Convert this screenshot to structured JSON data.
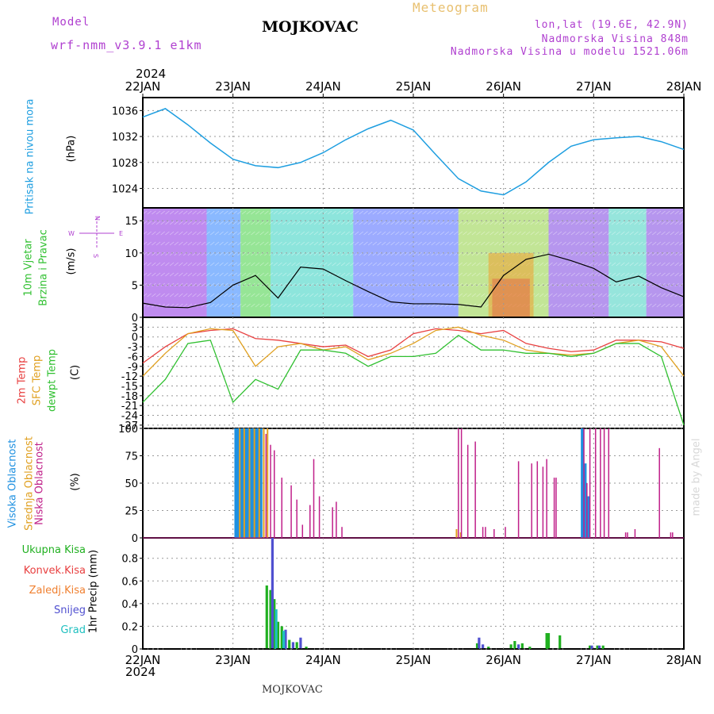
{
  "header": {
    "model_label": "Model",
    "model_name": "wrf-nmm_v3.9.1 e1km",
    "station": "MOJKOVAC",
    "title": "Meteogram",
    "coords": "lon,lat (19.6E, 42.9N)",
    "elevation": "Nadmorska Visina 848m",
    "model_elevation": "Nadmorska Visina u modelu 1521.06m",
    "year_top": "2024",
    "year_bottom": "2024",
    "footer_station": "MOJKOVAC",
    "watermark": "made by Angel"
  },
  "colors": {
    "pressure": "#1e9ee0",
    "temp_2m": "#e84040",
    "temp_sfc": "#e0a020",
    "dewpoint": "#30c030",
    "cloud_high": "#1e90e0",
    "cloud_mid": "#e0a020",
    "cloud_low": "#c0208a",
    "rain_total": "#20b020",
    "rain_conv": "#e84040",
    "rain_frozen": "#f08030",
    "snow": "#5050d0",
    "graupel": "#20c0c0",
    "grid": "#999999"
  },
  "chart_data": [
    {
      "type": "line",
      "panel": "pressure",
      "title": "Pritisak na nivou mora",
      "ylabel": "(hPa)",
      "ylim": [
        1021,
        1038
      ],
      "yticks": [
        1024,
        1028,
        1032,
        1036
      ],
      "x_ticks": [
        "22JAN",
        "23JAN",
        "24JAN",
        "25JAN",
        "26JAN",
        "27JAN",
        "28JAN"
      ],
      "x_hours": [
        0,
        6,
        12,
        18,
        24,
        30,
        36,
        42,
        48,
        54,
        60,
        66,
        72,
        78,
        84,
        90,
        96,
        102,
        108,
        114,
        120,
        126,
        132,
        138,
        144
      ],
      "series": [
        {
          "name": "Pritisak na nivou mora",
          "values": [
            1035.0,
            1036.3,
            1033.8,
            1031.0,
            1028.5,
            1027.5,
            1027.2,
            1028.0,
            1029.5,
            1031.5,
            1033.2,
            1034.5,
            1033.0,
            1029.2,
            1025.5,
            1023.6,
            1023.0,
            1025.0,
            1028.0,
            1030.5,
            1031.5,
            1031.8,
            1032.0,
            1031.2,
            1030.0
          ]
        }
      ]
    },
    {
      "type": "line",
      "panel": "wind",
      "title": "10m Vjetar Brzina i Pravac",
      "ylabel": "(m/s)",
      "ylim": [
        0,
        17
      ],
      "yticks": [
        0,
        5,
        10,
        15
      ],
      "compass": {
        "n": "N",
        "s": "S",
        "e": "E",
        "w": "W"
      },
      "x_hours": [
        0,
        6,
        12,
        18,
        24,
        30,
        36,
        42,
        48,
        54,
        60,
        66,
        72,
        78,
        84,
        90,
        96,
        102,
        108,
        114,
        120,
        126,
        132,
        138,
        144
      ],
      "series": [
        {
          "name": "10m Vjetar",
          "values": [
            2.2,
            1.6,
            1.5,
            2.3,
            5.0,
            6.5,
            3.0,
            7.8,
            7.5,
            5.7,
            4.0,
            2.4,
            2.1,
            2.1,
            2.0,
            1.6,
            6.5,
            9.0,
            9.8,
            8.8,
            7.6,
            5.5,
            6.4,
            4.6,
            3.2
          ]
        }
      ]
    },
    {
      "type": "line",
      "panel": "temperature",
      "title": "2m Temp, SFC Temp, dewpt Temp",
      "ylabel": "(C)",
      "ylim": [
        -28,
        6
      ],
      "yticks": [
        3,
        0,
        -3,
        -6,
        -9,
        -12,
        -15,
        -18,
        -21,
        -24,
        -27
      ],
      "x_hours": [
        0,
        6,
        12,
        18,
        24,
        30,
        36,
        42,
        48,
        54,
        60,
        66,
        72,
        78,
        84,
        90,
        96,
        102,
        108,
        114,
        120,
        126,
        132,
        138,
        144
      ],
      "series": [
        {
          "name": "2m Temp",
          "values": [
            -8.0,
            -3.0,
            1.0,
            2.0,
            2.5,
            -0.5,
            -1.0,
            -2.0,
            -3.0,
            -2.5,
            -6.0,
            -4.0,
            1.0,
            2.5,
            2.0,
            1.0,
            2.0,
            -2.0,
            -3.5,
            -4.5,
            -4.0,
            -1.0,
            -1.0,
            -1.5,
            -3.5
          ]
        },
        {
          "name": "SFC Temp",
          "values": [
            -12.0,
            -5.0,
            1.0,
            2.5,
            2.0,
            -9.0,
            -3.0,
            -2.0,
            -4.0,
            -3.0,
            -7.0,
            -5.0,
            -2.0,
            2.0,
            3.0,
            0.5,
            -1.0,
            -4.0,
            -5.0,
            -5.5,
            -5.0,
            -2.0,
            -1.0,
            -3.0,
            -12.0
          ]
        },
        {
          "name": "dewpt Temp",
          "values": [
            -20.0,
            -13.0,
            -2.0,
            -1.0,
            -20.0,
            -13.0,
            -16.0,
            -4.0,
            -4.0,
            -5.0,
            -9.0,
            -6.0,
            -6.0,
            -5.0,
            0.5,
            -4.0,
            -4.0,
            -5.0,
            -5.0,
            -6.0,
            -5.0,
            -2.0,
            -2.0,
            -6.0,
            -27.0
          ]
        }
      ]
    },
    {
      "type": "bar",
      "panel": "cloud",
      "title": "Visoka Oblacnost, Srednja Oblacnost, Niska Oblacnost",
      "ylabel": "(%)",
      "ylim": [
        0,
        100
      ],
      "yticks": [
        0,
        25,
        50,
        75,
        100
      ],
      "series": [
        {
          "name": "Visoka Oblacnost",
          "x": [
            24.8,
            25.5,
            26.2,
            26.8,
            27.5,
            28.1,
            28.8,
            29.4,
            30.1,
            30.8,
            31.4,
            117.0,
            117.7,
            118.6
          ],
          "values": [
            100,
            100,
            100,
            100,
            100,
            100,
            100,
            100,
            100,
            100,
            100,
            100,
            68,
            38
          ]
        },
        {
          "name": "Srednja Oblacnost",
          "x": [
            25.8,
            27.0,
            28.4,
            29.7,
            31.0,
            32.2,
            33.2,
            83.5,
            84.6
          ],
          "values": [
            100,
            100,
            100,
            100,
            100,
            100,
            100,
            8,
            5
          ]
        },
        {
          "name": "Niska Oblacnost",
          "x": [
            32.8,
            34.0,
            35.0,
            37.0,
            39.5,
            41.0,
            42.5,
            44.5,
            45.5,
            47.0,
            50.5,
            51.5,
            53.0,
            84.0,
            84.8,
            86.5,
            88.5,
            90.5,
            91.2,
            93.5,
            96.5,
            100.0,
            103.5,
            105.0,
            106.5,
            107.5,
            109.5,
            110.0,
            117.4,
            118.2,
            119.0,
            120.5,
            121.8,
            122.8,
            124.0,
            128.5,
            129.0,
            131.0,
            137.5,
            140.5,
            141.0
          ],
          "values": [
            95,
            85,
            80,
            55,
            48,
            35,
            12,
            30,
            72,
            38,
            28,
            33,
            10,
            100,
            100,
            85,
            88,
            10,
            10,
            8,
            10,
            70,
            68,
            70,
            65,
            72,
            55,
            55,
            100,
            50,
            100,
            100,
            100,
            100,
            100,
            5,
            5,
            8,
            82,
            5,
            5
          ]
        }
      ]
    },
    {
      "type": "bar",
      "panel": "precipitation",
      "title": "1hr Precip",
      "ylabel": "1hr Precip (mm)",
      "ylim": [
        0,
        0.98
      ],
      "yticks": [
        0,
        0.2,
        0.4,
        0.6,
        0.8
      ],
      "legend": [
        "Ukupna Kisa",
        "Konvek.Kisa",
        "Zaledj.Kisa",
        "Snijeg",
        "Grad"
      ],
      "series": [
        {
          "name": "Ukupna Kisa",
          "x": [
            33.0,
            34.0,
            35.0,
            36.0,
            37.0,
            39.0,
            41.0,
            43.5,
            89.0,
            92.0,
            98.0,
            99.0,
            101.0,
            103.0,
            107.5,
            108.0,
            111.0,
            119.0,
            121.0,
            122.5
          ],
          "values": [
            0.56,
            0.52,
            0.44,
            0.24,
            0.2,
            0.08,
            0.06,
            0.02,
            0.05,
            0.02,
            0.04,
            0.07,
            0.05,
            0.02,
            0.14,
            0.14,
            0.12,
            0.03,
            0.03,
            0.03
          ]
        },
        {
          "name": "Snijeg",
          "x": [
            34.5,
            38.0,
            40.0,
            42.0,
            89.5,
            90.5,
            100.0,
            119.5,
            121.5
          ],
          "values": [
            0.98,
            0.17,
            0.06,
            0.1,
            0.1,
            0.04,
            0.04,
            0.03,
            0.03
          ]
        },
        {
          "name": "Grad",
          "x": [
            35.5,
            37.5
          ],
          "values": [
            0.35,
            0.16
          ]
        }
      ]
    }
  ],
  "labels": {
    "pressure_title": "Pritisak na nivou mora",
    "pressure_unit": "(hPa)",
    "wind_title_1": "10m Vjetar",
    "wind_title_2": "Brzina i Pravac",
    "wind_unit": "(m/s)",
    "temp_2m": "2m Temp",
    "temp_sfc": "SFC Temp",
    "temp_dew": "dewpt Temp",
    "temp_unit": "(C)",
    "cloud_high": "Visoka Oblacnost",
    "cloud_mid": "Srednja Oblacnost",
    "cloud_low": "Niska Oblacnost",
    "cloud_unit": "(%)",
    "precip_axis": "1hr Precip (mm)",
    "rain_total": "Ukupna Kisa",
    "rain_conv": "Konvek.Kisa",
    "rain_frozen": "Zaledj.Kisa",
    "snow": "Snijeg",
    "graupel": "Grad"
  }
}
